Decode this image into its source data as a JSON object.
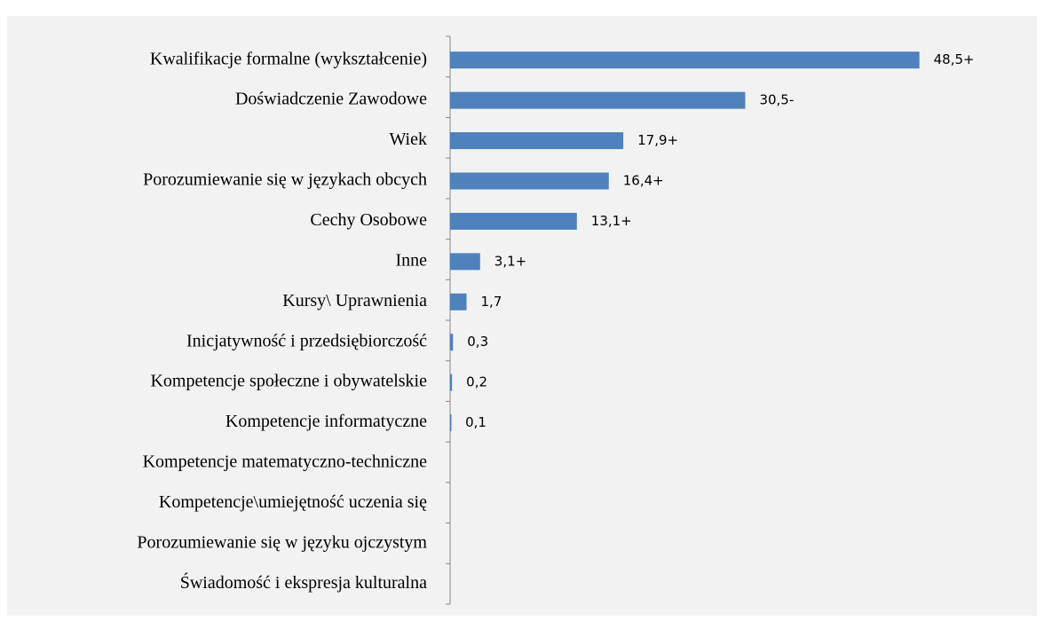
{
  "chart_data": {
    "type": "hbar",
    "categories": [
      "Kwalifikacje formalne (wykształcenie)",
      "Doświadczenie Zawodowe",
      "Wiek",
      "Porozumiewanie się w językach obcych",
      "Cechy Osobowe",
      "Inne",
      "Kursy\\ Uprawnienia",
      "Inicjatywność i przedsiębiorczość",
      "Kompetencje społeczne i obywatelskie",
      "Kompetencje informatyczne",
      "Kompetencje matematyczno-techniczne",
      "Kompetencje\\umiejętność uczenia się",
      "Porozumiewanie się w języku ojczystym",
      "Świadomość i ekspresja kulturalna"
    ],
    "values": [
      48.5,
      30.5,
      17.9,
      16.4,
      13.1,
      3.1,
      1.7,
      0.3,
      0.2,
      0.1,
      null,
      null,
      null,
      null
    ],
    "value_labels": [
      "48,5+",
      "30,5-",
      "17,9+",
      "16,4+",
      "13,1+",
      "3,1+",
      "1,7",
      "0,3",
      "0,2",
      "0,1",
      null,
      null,
      null,
      null
    ],
    "color": "#4f81bd",
    "xlim": [
      0,
      50
    ]
  }
}
